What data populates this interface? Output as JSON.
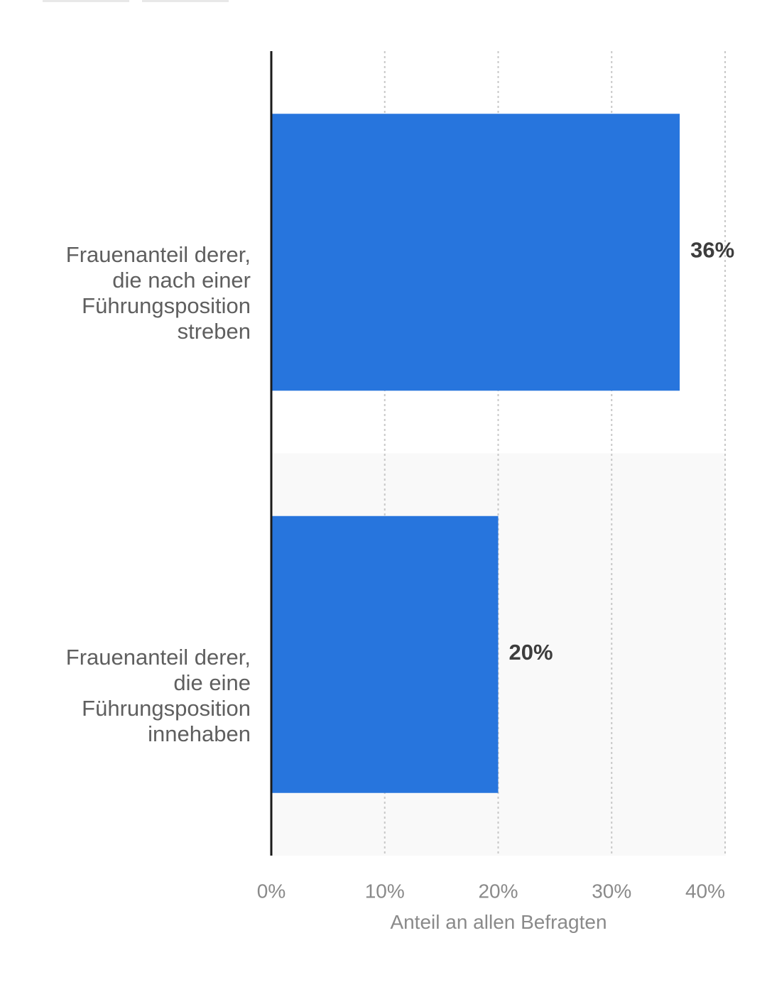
{
  "chart_data": {
    "type": "bar",
    "orientation": "horizontal",
    "categories": [
      "Frauenanteil derer,\ndie nach einer\nFührungsposition\nstreben",
      "Frauenanteil derer,\ndie eine\nFührungsposition\ninnehaben"
    ],
    "values": [
      36,
      20
    ],
    "value_labels": [
      "36%",
      "20%"
    ],
    "x_ticks": [
      0,
      10,
      20,
      30,
      40
    ],
    "x_tick_labels": [
      "0%",
      "10%",
      "20%",
      "30%",
      "40%"
    ],
    "xlim": [
      0,
      40
    ],
    "xlabel": "Anteil an allen Befragten",
    "grid": "vertical-dotted",
    "colors": {
      "bar": "#2775dd",
      "band": "#f9f9f9",
      "grid": "#c8c8c8",
      "axis": "#1a1a1a",
      "value_label": "#3d3d3d",
      "tick_label": "#8a8a8a"
    }
  }
}
